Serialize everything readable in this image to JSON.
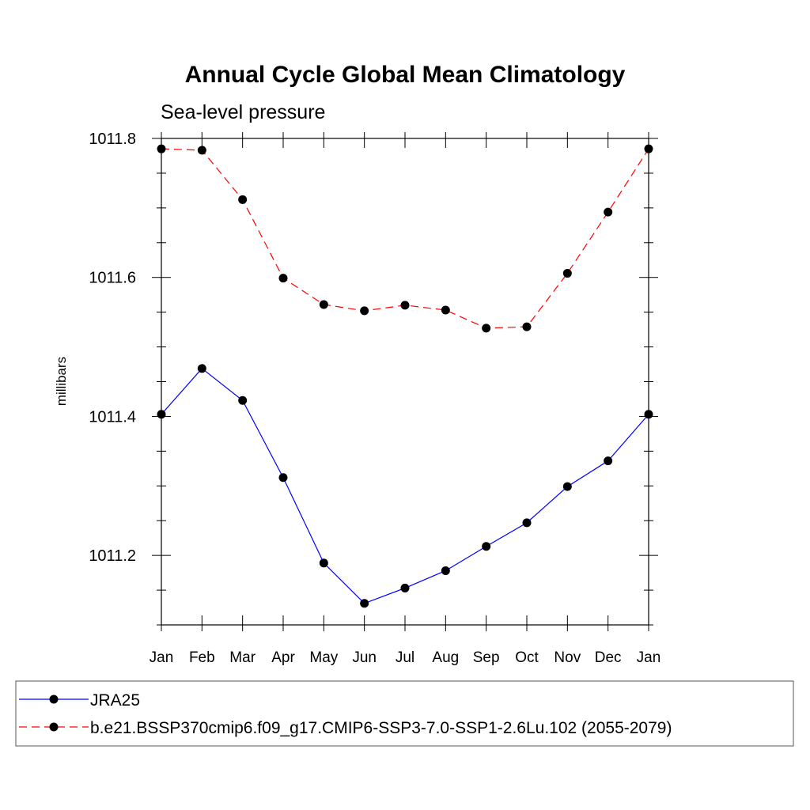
{
  "chart_data": {
    "type": "line",
    "title": "Annual Cycle Global Mean Climatology",
    "subtitle": "Sea-level pressure",
    "xlabel": "",
    "ylabel": "millibars",
    "categories": [
      "Jan",
      "Feb",
      "Mar",
      "Apr",
      "May",
      "Jun",
      "Jul",
      "Aug",
      "Sep",
      "Oct",
      "Nov",
      "Dec",
      "Jan"
    ],
    "ylim": [
      1011.1,
      1011.8
    ],
    "yticks": [
      1011.2,
      1011.4,
      1011.6,
      1011.8
    ],
    "ytick_labels": [
      "1011.2",
      "1011.4",
      "1011.6",
      "1011.8"
    ],
    "grid": false,
    "legend_position": "bottom",
    "series": [
      {
        "name": "JRA25",
        "color": "#0000ff",
        "dash": "solid",
        "values": [
          1011.403,
          1011.469,
          1011.423,
          1011.312,
          1011.189,
          1011.131,
          1011.153,
          1011.178,
          1011.213,
          1011.247,
          1011.299,
          1011.336,
          1011.403
        ]
      },
      {
        "name": "b.e21.BSSP370cmip6.f09_g17.CMIP6-SSP3-7.0-SSP1-2.6Lu.102 (2055-2079)",
        "color": "#ff0000",
        "dash": "dashed",
        "values": [
          1011.785,
          1011.783,
          1011.712,
          1011.599,
          1011.561,
          1011.552,
          1011.56,
          1011.553,
          1011.527,
          1011.529,
          1011.606,
          1011.694,
          1011.785
        ]
      }
    ]
  }
}
